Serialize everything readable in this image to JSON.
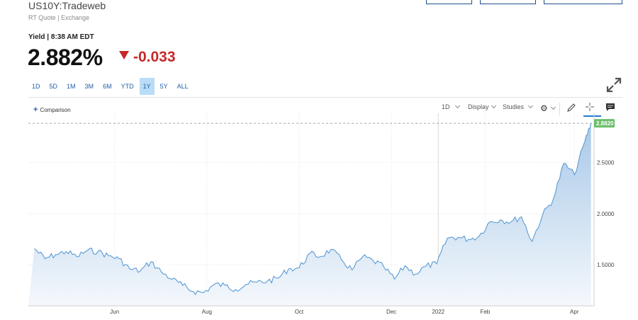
{
  "header": {
    "symbol": "US10Y:Tradeweb",
    "subtitle": "RT Quote | Exchange",
    "yield_label": "Yield | 8:38 AM EDT",
    "price": "2.882%",
    "change": "-0.033"
  },
  "colors": {
    "negative": "#c62828",
    "accent": "#1f5fa8",
    "active_range_bg": "#b9dcf7",
    "line": "#5b9bd5",
    "last_label_bg": "#6bbf6b"
  },
  "ranges": [
    {
      "label": "1D",
      "active": false
    },
    {
      "label": "5D",
      "active": false
    },
    {
      "label": "1M",
      "active": false
    },
    {
      "label": "3M",
      "active": false
    },
    {
      "label": "6M",
      "active": false
    },
    {
      "label": "YTD",
      "active": false
    },
    {
      "label": "1Y",
      "active": true
    },
    {
      "label": "5Y",
      "active": false
    },
    {
      "label": "ALL",
      "active": false
    }
  ],
  "toolbar": {
    "comparison": "Comparison",
    "interval": "1D",
    "display": "Display",
    "studies": "Studies"
  },
  "icons": [
    "expand-icon",
    "plus-icon",
    "gear-icon",
    "pencil-icon",
    "crosshair-icon",
    "comment-icon"
  ],
  "chart_data": {
    "type": "area",
    "title": "",
    "xlabel": "",
    "ylabel": "",
    "ylim": [
      1.1,
      2.98
    ],
    "x_tick_labels": [
      "Jun",
      "Aug",
      "Oct",
      "Dec",
      "2022",
      "Feb",
      "Apr"
    ],
    "y_tick_labels": [
      "1.5000",
      "2.0000",
      "2.5000"
    ],
    "last_value_label": "2.8820",
    "reference_line": 2.882,
    "series": [
      {
        "x": [
          "2021-04-09",
          "2021-04-16",
          "2021-04-23",
          "2021-04-30",
          "2021-05-07",
          "2021-05-14",
          "2021-05-21",
          "2021-05-28",
          "2021-06-04",
          "2021-06-11",
          "2021-06-18",
          "2021-06-25",
          "2021-07-02",
          "2021-07-09",
          "2021-07-16",
          "2021-07-23",
          "2021-07-30",
          "2021-08-06",
          "2021-08-13",
          "2021-08-20",
          "2021-08-27",
          "2021-09-03",
          "2021-09-10",
          "2021-09-17",
          "2021-09-24",
          "2021-10-01",
          "2021-10-08",
          "2021-10-15",
          "2021-10-22",
          "2021-10-29",
          "2021-11-05",
          "2021-11-12",
          "2021-11-19",
          "2021-11-26",
          "2021-12-03",
          "2021-12-10",
          "2021-12-17",
          "2021-12-24",
          "2021-12-31",
          "2022-01-07",
          "2022-01-14",
          "2022-01-21",
          "2022-01-28",
          "2022-02-04",
          "2022-02-11",
          "2022-02-18",
          "2022-02-25",
          "2022-03-04",
          "2022-03-11",
          "2022-03-18",
          "2022-03-25",
          "2022-04-01",
          "2022-04-08",
          "2022-04-12"
        ],
        "values": [
          1.66,
          1.56,
          1.6,
          1.63,
          1.58,
          1.64,
          1.63,
          1.59,
          1.56,
          1.46,
          1.44,
          1.53,
          1.43,
          1.36,
          1.3,
          1.24,
          1.23,
          1.31,
          1.3,
          1.26,
          1.31,
          1.33,
          1.34,
          1.37,
          1.46,
          1.47,
          1.61,
          1.58,
          1.65,
          1.55,
          1.45,
          1.58,
          1.54,
          1.48,
          1.36,
          1.49,
          1.41,
          1.49,
          1.51,
          1.76,
          1.77,
          1.75,
          1.78,
          1.92,
          1.94,
          1.92,
          1.97,
          1.73,
          1.99,
          2.14,
          2.49,
          2.38,
          2.71,
          2.882
        ]
      }
    ],
    "grid": true
  }
}
